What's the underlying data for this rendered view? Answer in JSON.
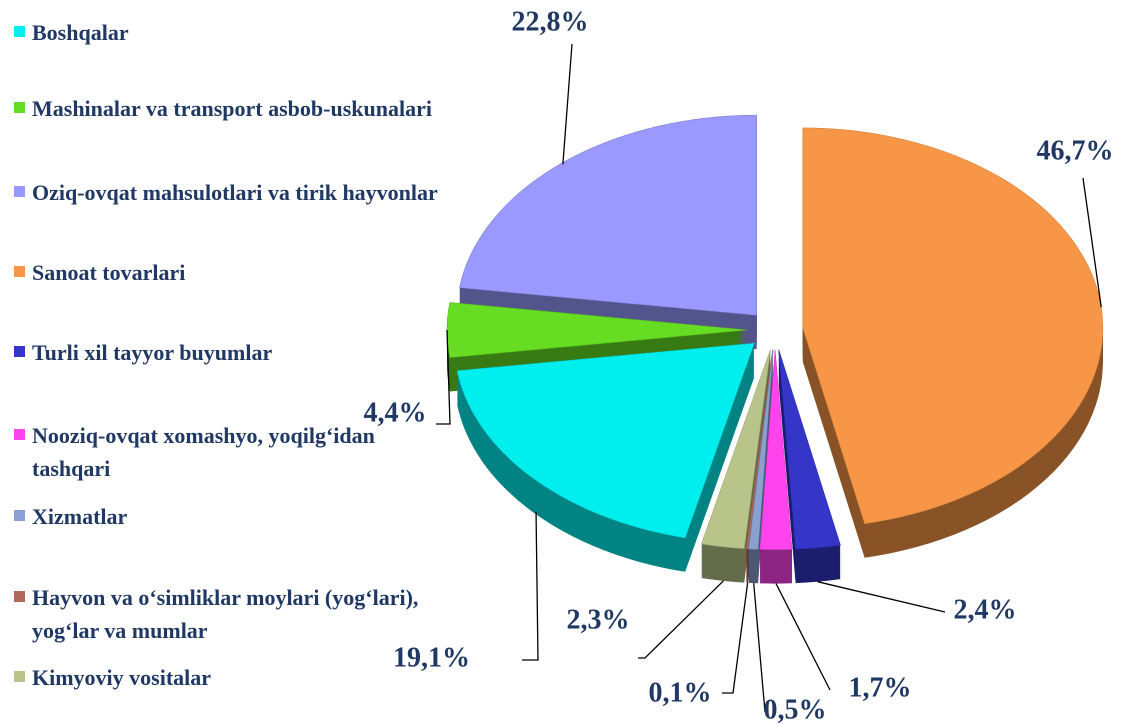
{
  "chart_data": {
    "type": "pie",
    "categories": [
      "Boshqalar",
      "Mashinalar va transport asbob-uskunalari",
      "Oziq-ovqat mahsulotlari va tirik hayvonlar",
      "Sanoat tovarlari",
      "Turli xil tayyor buyumlar",
      "Nooziq-ovqat xomashyo, yoqilg‘idan tashqari",
      "Xizmatlar",
      "Hayvon va o‘simliklar moylari (yog‘lari), yog‘lar va mumlar",
      "Kimyoviy vositalar"
    ],
    "values": [
      19.1,
      4.4,
      22.8,
      46.7,
      2.4,
      1.7,
      0.5,
      0.1,
      2.3
    ],
    "value_labels": [
      "19,1%",
      "4,4%",
      "22,8%",
      "46,7%",
      "2,4%",
      "1,7%",
      "0,5%",
      "0,1%",
      "2,3%"
    ],
    "colors": [
      "#00eeee",
      "#66dd22",
      "#9999ff",
      "#f79646",
      "#3535c8",
      "#ff44ee",
      "#8aa0d0",
      "#b06a5a",
      "#b8c48a"
    ],
    "legend": "left"
  }
}
